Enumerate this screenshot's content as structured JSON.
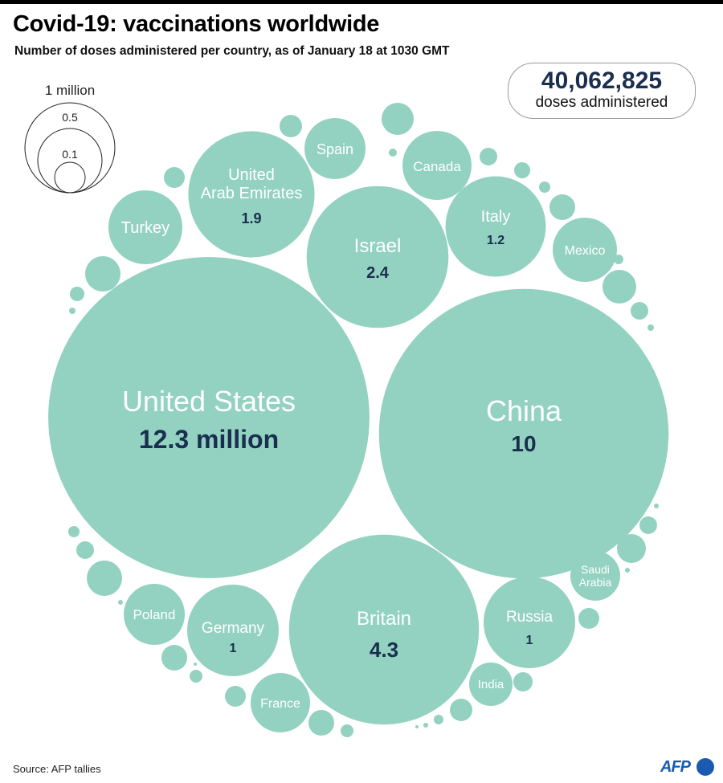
{
  "header": {
    "title": "Covid-19: vaccinations worldwide",
    "subtitle": "Number of doses administered per country, as of January 18 at 1030 GMT"
  },
  "total": {
    "value": "40,062,825",
    "label": "doses administered"
  },
  "legend": {
    "title": "1 million",
    "labels": [
      "0.5",
      "0.1"
    ]
  },
  "footer": {
    "source": "Source: AFP tallies",
    "logo": "AFP"
  },
  "colors": {
    "bubble": "#93d2c0",
    "value_text": "#1a2e4f",
    "label_text": "#ffffff",
    "brand": "#1a5bb0"
  },
  "chart_data": {
    "type": "bubble",
    "title": "Covid-19: vaccinations worldwide",
    "unit": "million doses",
    "legend_sizes": [
      1,
      0.5,
      0.1
    ],
    "bubbles": [
      {
        "name": "United States",
        "value": 12.3,
        "value_label": "12.3 million"
      },
      {
        "name": "China",
        "value": 10,
        "value_label": "10"
      },
      {
        "name": "Britain",
        "value": 4.3,
        "value_label": "4.3"
      },
      {
        "name": "Israel",
        "value": 2.4,
        "value_label": "2.4"
      },
      {
        "name": "United Arab Emirates",
        "lines": [
          "United",
          "Arab Emirates"
        ],
        "value": 1.9,
        "value_label": "1.9"
      },
      {
        "name": "Italy",
        "value": 1.2,
        "value_label": "1.2"
      },
      {
        "name": "Russia",
        "value": 1,
        "value_label": "1"
      },
      {
        "name": "Germany",
        "value": 1,
        "value_label": "1"
      },
      {
        "name": "Turkey",
        "value": null
      },
      {
        "name": "Canada",
        "value": null
      },
      {
        "name": "Spain",
        "value": null
      },
      {
        "name": "Mexico",
        "value": null
      },
      {
        "name": "Poland",
        "value": null
      },
      {
        "name": "France",
        "value": null
      },
      {
        "name": "Saudi Arabia",
        "lines": [
          "Saudi",
          "Arabia"
        ],
        "value": null
      },
      {
        "name": "India",
        "value": null
      }
    ]
  }
}
